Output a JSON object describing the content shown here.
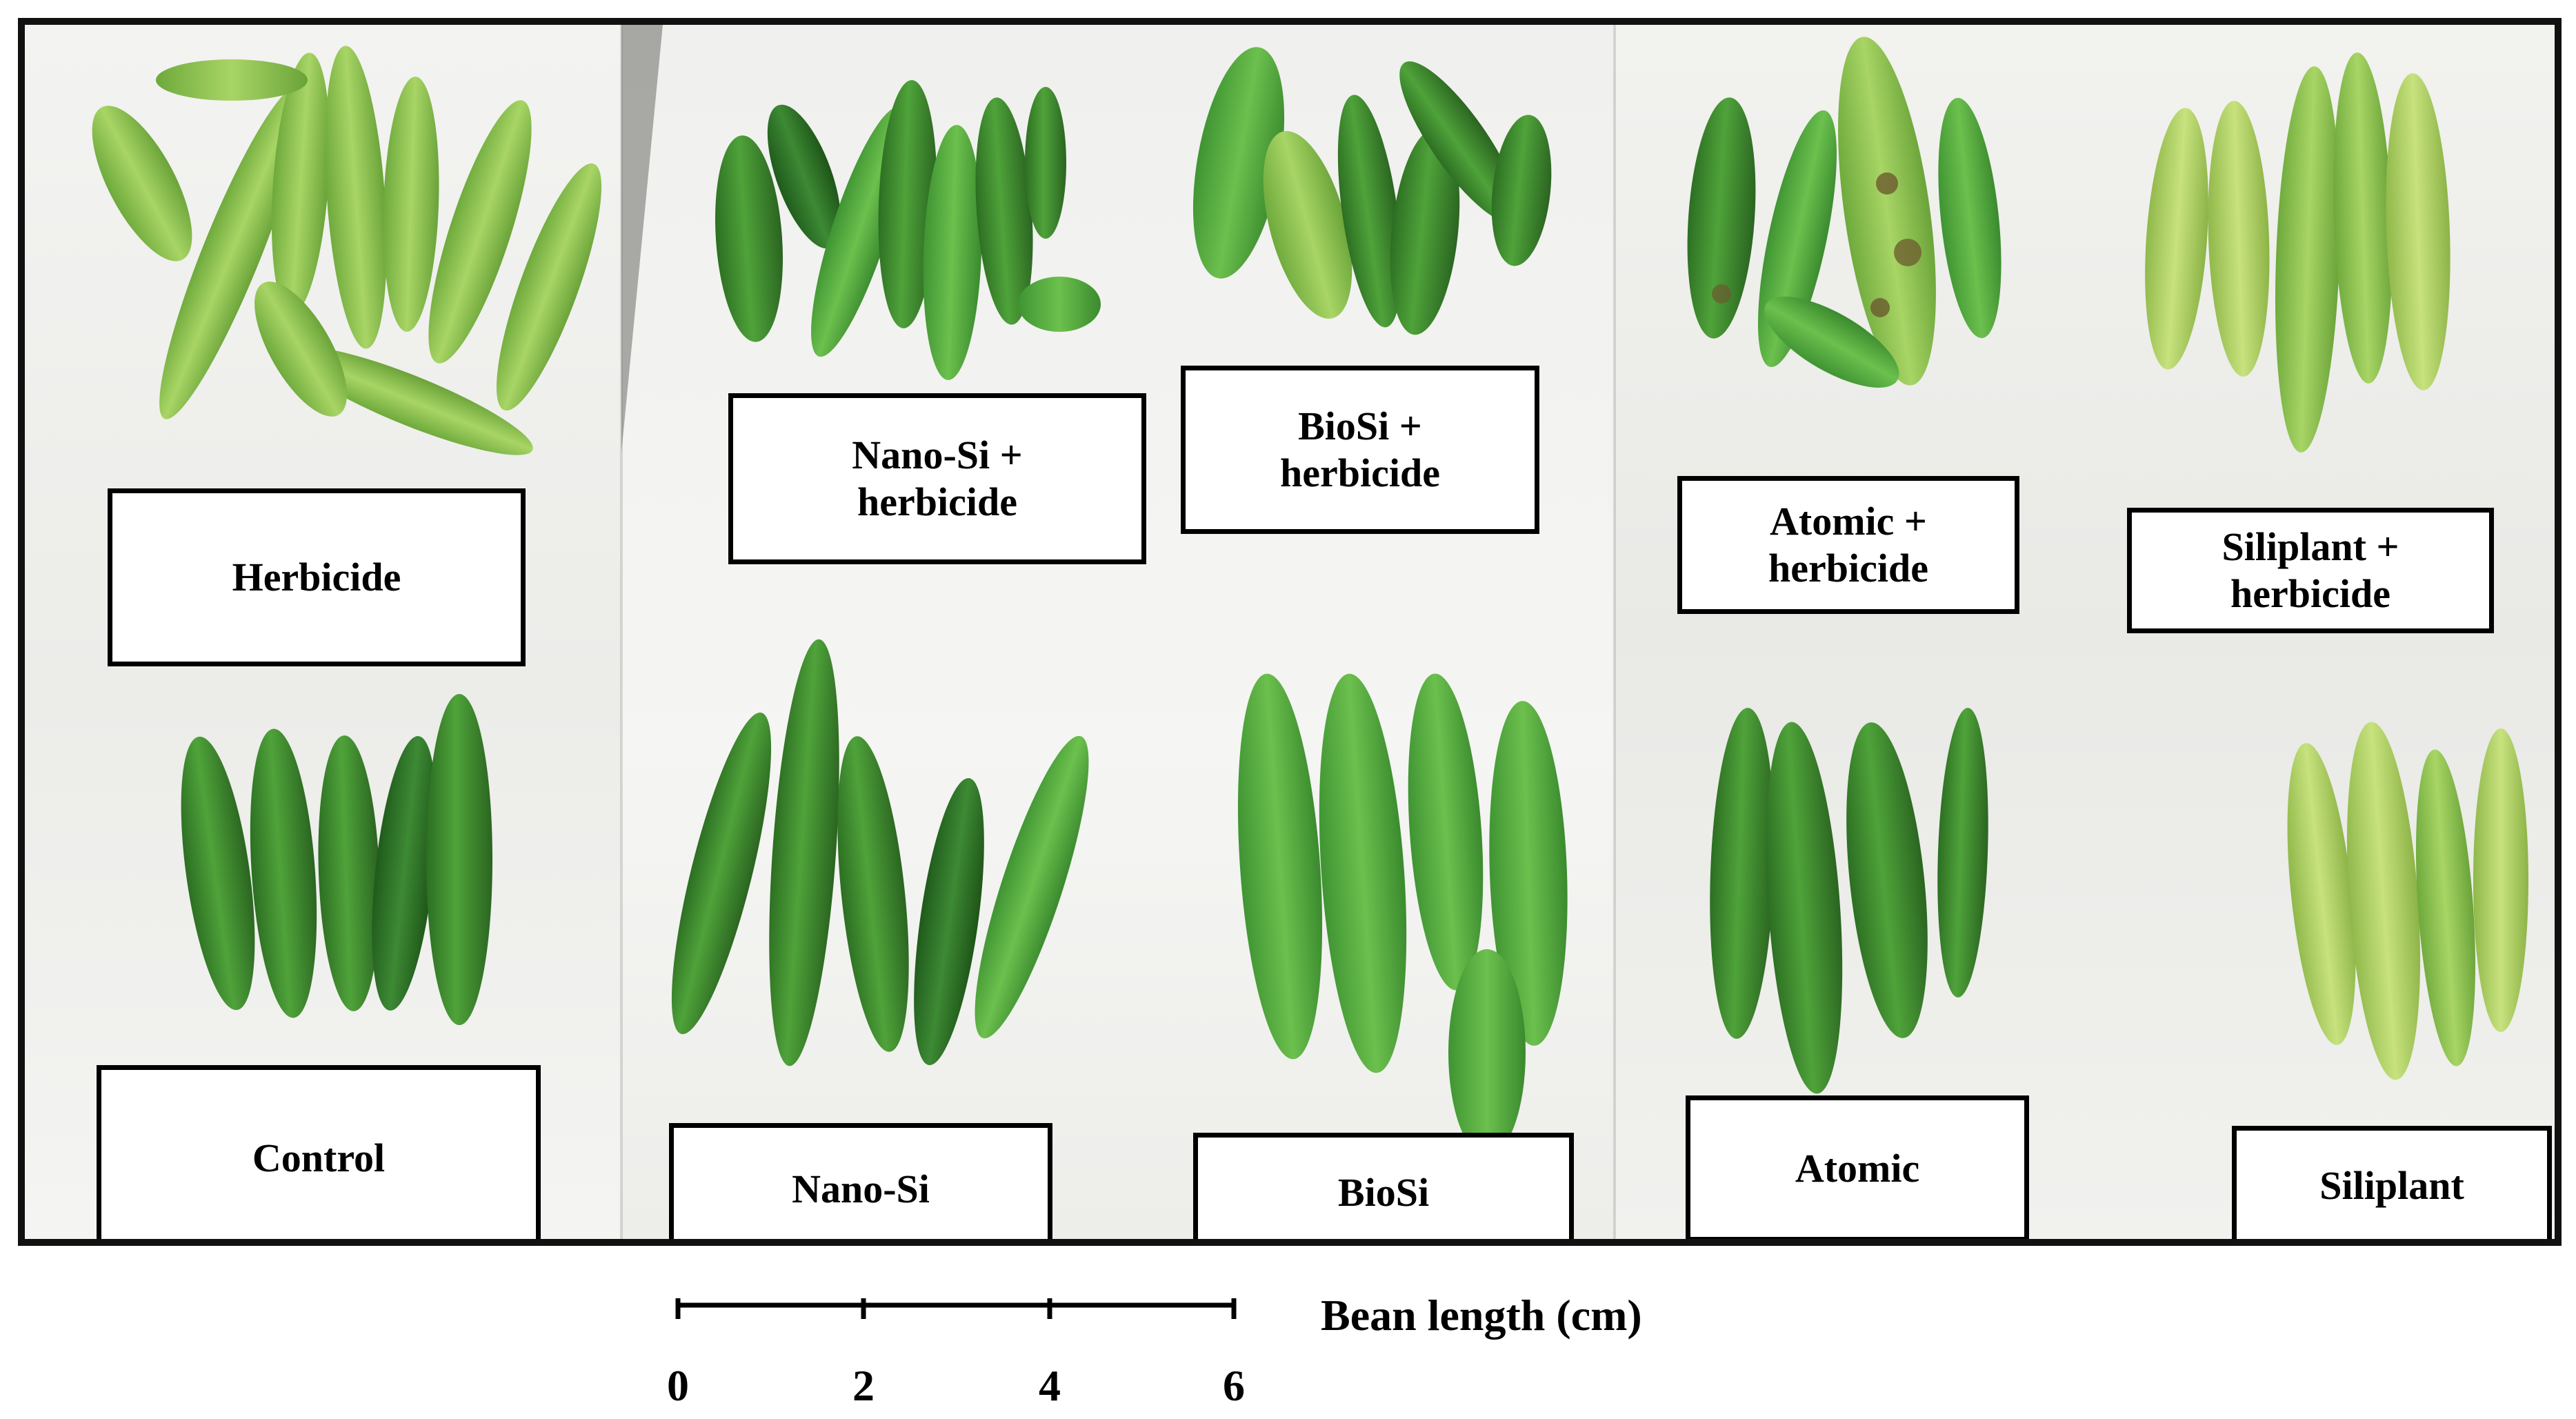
{
  "labels": {
    "herbicide": "Herbicide",
    "nano_si_herbicide": "Nano-Si +\nherbicide",
    "biosi_herbicide": "BioSi +\nherbicide",
    "atomic_herbicide": "Atomic +\nherbicide",
    "siliplant_herbicide": "Siliplant +\nherbicide",
    "control": "Control",
    "nano_si": "Nano-Si",
    "biosi": "BioSi",
    "atomic": "Atomic",
    "siliplant": "Siliplant"
  },
  "scale_bar": {
    "title": "Bean length (cm)",
    "ticks": [
      "0",
      "2",
      "4",
      "6"
    ]
  },
  "colors": {
    "healthy_green": "#3d8f2e",
    "pale_green": "#9fcf5c",
    "lime_green": "#b9d86a",
    "lesion_brown": "#6b5a2e"
  }
}
